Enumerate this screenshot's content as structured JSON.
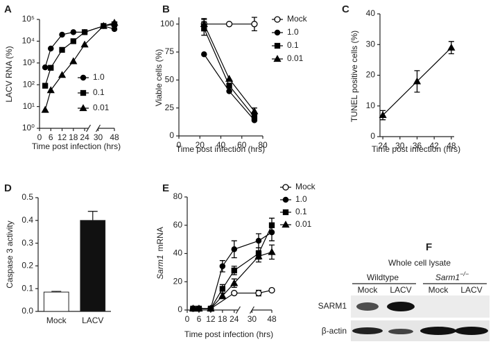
{
  "chart_data": [
    {
      "panel": "A",
      "type": "line",
      "ylabel": "LACV RNA (%)",
      "xlabel": "Time post infection (hrs)",
      "x": [
        3,
        6,
        12,
        18,
        24,
        36,
        48
      ],
      "xlim": [
        0,
        48
      ],
      "xbreak": [
        26,
        30
      ],
      "xticks": [
        0,
        6,
        12,
        18,
        24,
        30,
        48
      ],
      "ylog": true,
      "ylim": [
        1,
        100000
      ],
      "yticks": [
        {
          "value": 1,
          "label": "10⁰"
        },
        {
          "value": 10,
          "label": "10¹"
        },
        {
          "value": 100,
          "label": "10²"
        },
        {
          "value": 1000,
          "label": "10³"
        },
        {
          "value": 10000,
          "label": "10⁴"
        },
        {
          "value": 100000,
          "label": "10⁵"
        }
      ],
      "legend": "lower right",
      "series": [
        {
          "name": "1.0",
          "marker": "circle",
          "color": "#000000",
          "values": [
            630,
            4600,
            20000,
            26000,
            26000,
            50000,
            36000
          ]
        },
        {
          "name": "0.1",
          "marker": "square",
          "color": "#000000",
          "values": [
            90,
            600,
            4000,
            10000,
            26000,
            50000,
            60000
          ]
        },
        {
          "name": "0.01",
          "marker": "triangle",
          "color": "#000000",
          "values": [
            7,
            56,
            280,
            1200,
            7000,
            50000,
            70000
          ]
        }
      ]
    },
    {
      "panel": "B",
      "type": "line",
      "ylabel": "Viable cells (%)",
      "xlabel": "Time post infection (hrs)",
      "x": [
        24,
        48,
        72
      ],
      "xlim": [
        0,
        80
      ],
      "xticks": [
        0,
        20,
        40,
        60,
        80
      ],
      "ylim": [
        0,
        106
      ],
      "yticks": [
        0,
        25,
        50,
        75,
        100
      ],
      "legend": "right",
      "series": [
        {
          "name": "Mock",
          "marker": "circle",
          "open": true,
          "color": "#000000",
          "values": [
            100,
            100,
            100
          ],
          "errors": [
            5,
            null,
            6
          ]
        },
        {
          "name": "1.0",
          "marker": "circle",
          "color": "#000000",
          "values": [
            73,
            40,
            14
          ]
        },
        {
          "name": "0.1",
          "marker": "square",
          "color": "#000000",
          "values": [
            96,
            45,
            17
          ],
          "errors": [
            6,
            null,
            null
          ]
        },
        {
          "name": "0.01",
          "marker": "triangle",
          "color": "#000000",
          "values": [
            100,
            51,
            22
          ],
          "errors": [
            4,
            null,
            3
          ]
        }
      ]
    },
    {
      "panel": "C",
      "type": "line",
      "ylabel": "TUNEL  positive cells (%)",
      "xlabel": "Time post infection (hrs)",
      "x": [
        24,
        36,
        48
      ],
      "xlim": [
        23,
        49
      ],
      "xticks": [
        24,
        30,
        36,
        42,
        48
      ],
      "ylim": [
        0,
        40
      ],
      "yticks": [
        0,
        10,
        20,
        30,
        40
      ],
      "series": [
        {
          "marker": "triangle",
          "color": "#000000",
          "values": [
            7,
            18,
            29
          ],
          "errors": [
            1.5,
            3.5,
            2
          ]
        }
      ]
    },
    {
      "panel": "D",
      "type": "bar",
      "ylabel": "Caspase 3 activity",
      "categories": [
        "Mock",
        "LACV"
      ],
      "values": [
        0.085,
        0.4
      ],
      "errors": [
        0.003,
        0.04
      ],
      "colors": [
        "#ffffff",
        "#111111"
      ],
      "ylim": [
        0,
        0.5
      ],
      "yticks": [
        {
          "value": 0,
          "label": "0.0"
        },
        0.1,
        0.2,
        0.3,
        0.4,
        0.5
      ]
    },
    {
      "panel": "E",
      "type": "line",
      "ylabel_italic": "Sarm1",
      "ylabel": "mRNA",
      "xlabel": "Time post infection (hrs)",
      "x": [
        3,
        6,
        12,
        18,
        24,
        36,
        48
      ],
      "xlim": [
        0,
        48
      ],
      "xbreak": [
        26,
        30
      ],
      "xticks": [
        0,
        6,
        12,
        18,
        24,
        30,
        48
      ],
      "ylim": [
        0,
        80
      ],
      "yticks": [
        0,
        20,
        40,
        60,
        80
      ],
      "legend": "right",
      "series": [
        {
          "name": "Mock",
          "marker": "circle",
          "open": true,
          "color": "#000000",
          "x": [
            3,
            6,
            12,
            24,
            36,
            48
          ],
          "values": [
            1,
            1,
            1,
            12,
            12,
            14
          ],
          "errors": [
            null,
            null,
            null,
            null,
            2,
            null
          ]
        },
        {
          "name": "1.0",
          "marker": "circle",
          "color": "#000000",
          "values": [
            1,
            1,
            1,
            31,
            43,
            49,
            55
          ],
          "errors": [
            null,
            null,
            null,
            4,
            6,
            5,
            6
          ]
        },
        {
          "name": "0.1",
          "marker": "square",
          "color": "#000000",
          "values": [
            1,
            1,
            1,
            15,
            28,
            40,
            60
          ],
          "errors": [
            null,
            null,
            null,
            3,
            3,
            4,
            5
          ]
        },
        {
          "name": "0.01",
          "marker": "triangle",
          "color": "#000000",
          "values": [
            1,
            1,
            1,
            10,
            19,
            38,
            41
          ],
          "errors": [
            null,
            null,
            null,
            2,
            3,
            4,
            5
          ]
        }
      ]
    }
  ],
  "blot": {
    "panel": "F",
    "title": "Whole cell lysate",
    "groups": [
      {
        "label": "Wildtype"
      },
      {
        "label": "Sarm1",
        "sup": "−/−"
      }
    ],
    "lanes": [
      "Mock",
      "LACV",
      "Mock",
      "LACV"
    ],
    "rows": [
      "SARM1",
      "β-actin"
    ]
  }
}
